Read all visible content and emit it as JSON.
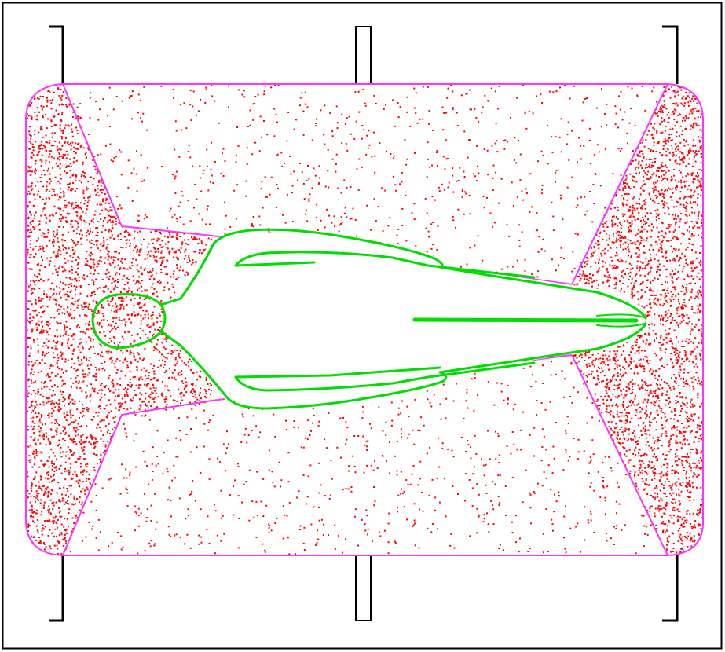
{
  "colors": {
    "background": "#ffffff",
    "frame": "#000000",
    "boundary": "#ff33ff",
    "dots": "#ff0000",
    "contour": "#00dd00"
  },
  "icons": {
    "dense_region": "dense-dot-region",
    "sparse_region": "sparse-dot-region",
    "body_contour": "green-contour"
  }
}
